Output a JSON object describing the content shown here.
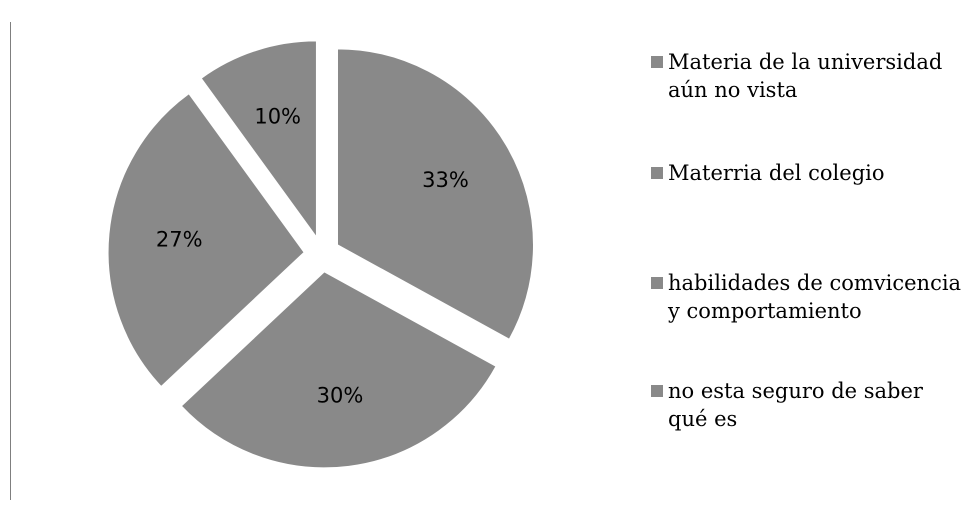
{
  "chart_data": {
    "type": "pie",
    "title": "",
    "slices": [
      {
        "label": "Materia de la universidad aún no vista",
        "value": 10,
        "value_label": "10%"
      },
      {
        "label": "Materria del colegio",
        "value": 33,
        "value_label": "33%"
      },
      {
        "label": "habilidades de comvicencia y comportamiento",
        "value": 30,
        "value_label": "30%"
      },
      {
        "label": "no esta seguro de saber qué es",
        "value": 27,
        "value_label": "27%"
      }
    ],
    "legend_position": "right",
    "exploded": true,
    "colors": {
      "slice_fill": "#898989",
      "slice_stroke": "#ffffff",
      "legend_swatch": "#898989"
    }
  }
}
